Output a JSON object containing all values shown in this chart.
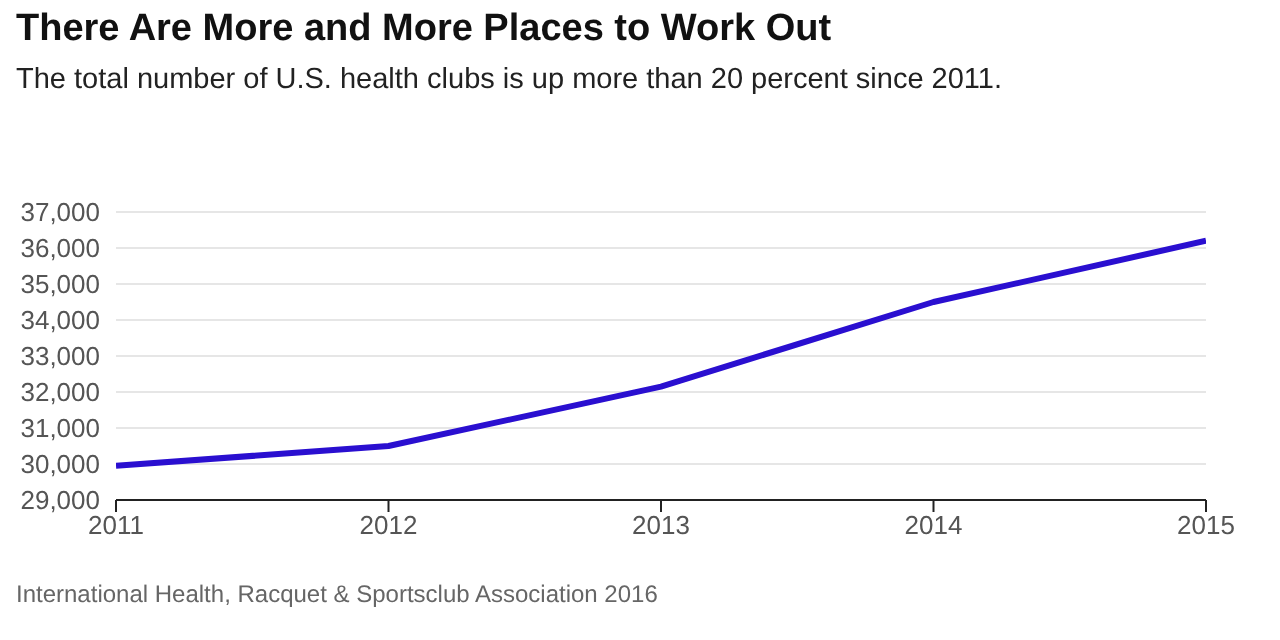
{
  "chart_data": {
    "type": "line",
    "title": "There Are More and More Places to Work Out",
    "subtitle": "The total number of U.S. health clubs is up more than 20 percent since 2011.",
    "x": [
      2011,
      2012,
      2013,
      2014,
      2015
    ],
    "series": [
      {
        "color": "#2a0fd0",
        "values": [
          29950,
          30500,
          32150,
          34500,
          36200
        ]
      }
    ],
    "xlim": [
      2011,
      2015
    ],
    "xticks": [
      2011,
      2012,
      2013,
      2014,
      2015
    ],
    "ylim": [
      29000,
      37000
    ],
    "yticks": [
      {
        "value": 29000,
        "label": "29,000"
      },
      {
        "value": 30000,
        "label": "30,000"
      },
      {
        "value": 31000,
        "label": "31,000"
      },
      {
        "value": 32000,
        "label": "32,000"
      },
      {
        "value": 33000,
        "label": "33,000"
      },
      {
        "value": 34000,
        "label": "34,000"
      },
      {
        "value": 35000,
        "label": "35,000"
      },
      {
        "value": 36000,
        "label": "36,000"
      },
      {
        "value": 37000,
        "label": "37,000"
      }
    ],
    "grid": "y",
    "marker": "none",
    "line_style": "solid",
    "legend": false,
    "annotations": [
      "International Health, Racquet & Sportsclub Association 2016"
    ]
  }
}
